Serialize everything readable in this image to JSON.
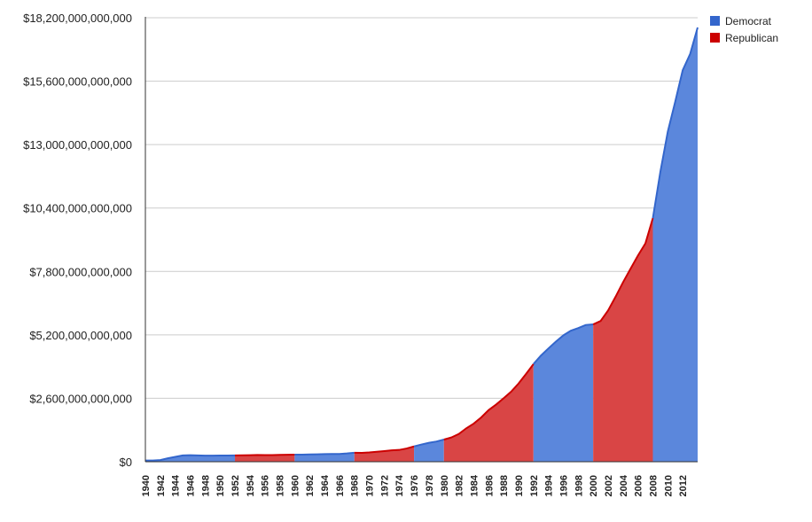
{
  "chart_data": {
    "type": "area",
    "title": "",
    "xlabel": "",
    "ylabel": "",
    "ylim": [
      0,
      18200000000000
    ],
    "xlim": [
      1940,
      2014
    ],
    "grid": true,
    "legend_position": "top-right",
    "y_ticks": [
      {
        "value": 0,
        "label": "$0"
      },
      {
        "value": 2600000000000,
        "label": "$2,600,000,000,000"
      },
      {
        "value": 5200000000000,
        "label": "$5,200,000,000,000"
      },
      {
        "value": 7800000000000,
        "label": "$7,800,000,000,000"
      },
      {
        "value": 10400000000000,
        "label": "$10,400,000,000,000"
      },
      {
        "value": 13000000000000,
        "label": "$13,000,000,000,000"
      },
      {
        "value": 15600000000000,
        "label": "$15,600,000,000,000"
      },
      {
        "value": 18200000000000,
        "label": "$18,200,000,000,000"
      }
    ],
    "x_ticks": [
      "1940",
      "1942",
      "1944",
      "1946",
      "1948",
      "1950",
      "1952",
      "1954",
      "1956",
      "1958",
      "1960",
      "1962",
      "1964",
      "1966",
      "1968",
      "1970",
      "1972",
      "1974",
      "1976",
      "1978",
      "1980",
      "1982",
      "1984",
      "1986",
      "1988",
      "1990",
      "1992",
      "1994",
      "1996",
      "1998",
      "2000",
      "2002",
      "2004",
      "2006",
      "2008",
      "2010",
      "2012"
    ],
    "series": [
      {
        "name": "Democrat",
        "color": "#3366cc",
        "fill": "#5b87dc"
      },
      {
        "name": "Republican",
        "color": "#cc0000",
        "fill": "#d94545"
      }
    ],
    "periods": [
      {
        "party": "Democrat",
        "start": 1940,
        "end": 1952
      },
      {
        "party": "Republican",
        "start": 1952,
        "end": 1960
      },
      {
        "party": "Democrat",
        "start": 1960,
        "end": 1968
      },
      {
        "party": "Republican",
        "start": 1968,
        "end": 1976
      },
      {
        "party": "Democrat",
        "start": 1976,
        "end": 1980
      },
      {
        "party": "Republican",
        "start": 1980,
        "end": 1992
      },
      {
        "party": "Democrat",
        "start": 1992,
        "end": 2000
      },
      {
        "party": "Republican",
        "start": 2000,
        "end": 2008
      },
      {
        "party": "Democrat",
        "start": 2008,
        "end": 2014
      }
    ],
    "x": [
      1940,
      1941,
      1942,
      1943,
      1944,
      1945,
      1946,
      1947,
      1948,
      1949,
      1950,
      1951,
      1952,
      1953,
      1954,
      1955,
      1956,
      1957,
      1958,
      1959,
      1960,
      1961,
      1962,
      1963,
      1964,
      1965,
      1966,
      1967,
      1968,
      1969,
      1970,
      1971,
      1972,
      1973,
      1974,
      1975,
      1976,
      1977,
      1978,
      1979,
      1980,
      1981,
      1982,
      1983,
      1984,
      1985,
      1986,
      1987,
      1988,
      1989,
      1990,
      1991,
      1992,
      1993,
      1994,
      1995,
      1996,
      1997,
      1998,
      1999,
      2000,
      2001,
      2002,
      2003,
      2004,
      2005,
      2006,
      2007,
      2008,
      2009,
      2010,
      2011,
      2012,
      2013,
      2014
    ],
    "values": [
      50000000000,
      50000000000,
      70000000000,
      140000000000,
      200000000000,
      260000000000,
      270000000000,
      260000000000,
      250000000000,
      250000000000,
      255000000000,
      255000000000,
      260000000000,
      265000000000,
      270000000000,
      275000000000,
      272000000000,
      272000000000,
      280000000000,
      285000000000,
      290000000000,
      290000000000,
      300000000000,
      306000000000,
      312000000000,
      317000000000,
      320000000000,
      340000000000,
      368000000000,
      365000000000,
      381000000000,
      408000000000,
      436000000000,
      466000000000,
      484000000000,
      542000000000,
      629000000000,
      706000000000,
      776000000000,
      829000000000,
      909000000000,
      995000000000,
      1137000000000,
      1371000000000,
      1564000000000,
      1817000000000,
      2120000000000,
      2346000000000,
      2601000000000,
      2868000000000,
      3206000000000,
      3598000000000,
      4002000000000,
      4351000000000,
      4643000000000,
      4921000000000,
      5181000000000,
      5369000000000,
      5478000000000,
      5606000000000,
      5629000000000,
      5770000000000,
      6198000000000,
      6760000000000,
      7354000000000,
      7905000000000,
      8451000000000,
      8951000000000,
      9986000000000,
      11876000000000,
      13529000000000,
      14764000000000,
      16051000000000,
      16719000000000,
      17800000000000
    ]
  }
}
